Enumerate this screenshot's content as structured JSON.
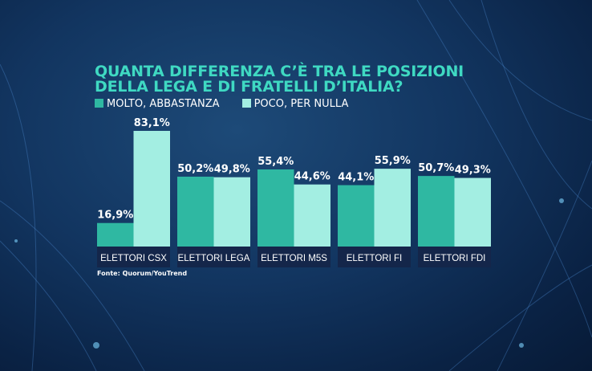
{
  "chart_data": {
    "type": "bar",
    "title": "QUANTA DIFFERENZA C'È TRA LE POSIZIONI DELLA LEGA E DI FRATELLI D'ITALIA?",
    "title_lines": [
      "QUANTA DIFFERENZA C’È TRA LE POSIZIONI",
      "DELLA LEGA E DI FRATELLI D’ITALIA?"
    ],
    "categories": [
      "ELETTORI CSX",
      "ELETTORI LEGA",
      "ELETTORI M5S",
      "ELETTORI FI",
      "ELETTORI FDI"
    ],
    "series": [
      {
        "name": "MOLTO, ABBASTANZA",
        "color": "#2fb8a2",
        "values": [
          16.9,
          50.2,
          55.4,
          44.1,
          50.7
        ],
        "labels": [
          "16,9%",
          "50,2%",
          "55,4%",
          "44,1%",
          "50,7%"
        ]
      },
      {
        "name": "POCO, PER NULLA",
        "color": "#a3eee2",
        "values": [
          83.1,
          49.8,
          44.6,
          55.9,
          49.3
        ],
        "labels": [
          "83,1%",
          "49,8%",
          "44,6%",
          "55,9%",
          "49,3%"
        ]
      }
    ],
    "ylim": [
      0,
      100
    ],
    "grid": false,
    "legend": "top-left"
  },
  "source": "Fonte: Quorum/YouTrend"
}
